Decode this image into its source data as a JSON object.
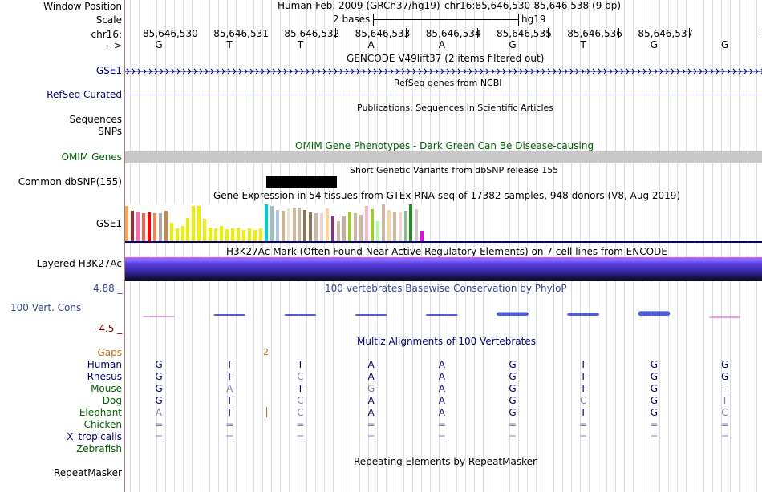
{
  "header": {
    "window_position_label": "Window Position",
    "assembly_text": "Human Feb. 2009 (GRCh37/hg19)",
    "position_text": "chr16:85,646,530-85,646,538 (9 bp)",
    "scale_label": "Scale",
    "scale_text": "2 bases",
    "scale_db": "hg19",
    "chrom_label": "chr16:",
    "strand_label": "--->",
    "coords": [
      "85,646,530",
      "85,646,531",
      "85,646,532",
      "85,646,533",
      "85,646,534",
      "85,646,535",
      "85,646,536",
      "85,646,537"
    ],
    "sequence": [
      "G",
      "T",
      "T",
      "A",
      "A",
      "G",
      "T",
      "G",
      "G"
    ]
  },
  "tracks": {
    "gencode": {
      "title": "GENCODE V49lift37 (2 items filtered out)",
      "label": "GSE1"
    },
    "refseq": {
      "title": "RefSeq genes from NCBI",
      "label": "RefSeq Curated"
    },
    "publications": {
      "title": "Publications: Sequences in Scientific Articles",
      "label_a": "Sequences",
      "label_b": "SNPs"
    },
    "omim": {
      "title": "OMIM Gene Phenotypes - Dark Green Can Be Disease-causing",
      "label": "OMIM Genes"
    },
    "dbsnp": {
      "title": "Short Genetic Variants from dbSNP release 155",
      "label": "Common dbSNP(155)"
    },
    "gtex": {
      "title": "Gene Expression in 54 tissues from GTEx RNA-seq of 17382 samples, 948 donors (V8, Aug 2019)",
      "label": "GSE1",
      "values": [
        0.95,
        0.82,
        0.8,
        0.75,
        0.78,
        0.75,
        0.75,
        0.82,
        0.5,
        0.35,
        0.42,
        0.62,
        0.95,
        0.95,
        0.6,
        0.38,
        0.35,
        0.42,
        0.32,
        0.35,
        0.38,
        0.3,
        0.35,
        0.3,
        0.35,
        1.0,
        0.95,
        0.85,
        0.82,
        0.9,
        0.92,
        0.92,
        0.85,
        0.78,
        0.75,
        0.75,
        0.9,
        0.7,
        0.55,
        0.68,
        0.8,
        0.75,
        0.72,
        0.95,
        0.88,
        0.55,
        1.0,
        0.85,
        0.8,
        0.78,
        0.82,
        1.0,
        0.88,
        0.28
      ],
      "colors": [
        "#ffa54f",
        "#a52a2a",
        "#ff69b4",
        "#ff6347",
        "#ff0000",
        "#ff7f50",
        "#aaaaaa",
        "#cd853f",
        "#eeee00",
        "#eeee00",
        "#eeee00",
        "#eeee00",
        "#eeee00",
        "#eeee00",
        "#eeee00",
        "#eeee00",
        "#eeee00",
        "#eeee00",
        "#eeee00",
        "#eeee00",
        "#eeee00",
        "#eeee00",
        "#eeee00",
        "#eeee00",
        "#eeee00",
        "#00cdcd",
        "#9ac0cd",
        "#b0c4de",
        "#d2b48c",
        "#eedfcc",
        "#cdb79e",
        "#cdb79e",
        "#8b7355",
        "#8b7355",
        "#cdb79e",
        "#eed5d2",
        "#ffd39b",
        "#7a378b",
        "#cdb79e",
        "#ccad9b",
        "#9acd32",
        "#cdb79e",
        "#cdb79e",
        "#ffb6c1",
        "#9acd32",
        "#aaffaa",
        "#cdb79e",
        "#ffd39b",
        "#cdb79e",
        "#eed5d2",
        "#8fbc8f",
        "#228b22",
        "#cdc9c9",
        "#ee00ee"
      ]
    },
    "h3k27ac": {
      "title": "H3K27Ac Mark (Often Found Near Active Regulatory Elements) on 7 cell lines from ENCODE",
      "label": "Layered H3K27Ac"
    },
    "phylop": {
      "title": "100 vertebrates Basewise Conservation by PhyloP",
      "label": "100 Vert. Cons",
      "max": "4.88 _",
      "min": "-4.5 _",
      "scores": [
        -0.35,
        0.2,
        0.1,
        0.05,
        0.05,
        0.8,
        0.6,
        1.0,
        -0.55
      ]
    },
    "multiz": {
      "title": "Multiz Alignments of 100 Vertebrates",
      "gaps_label": "Gaps",
      "gap_count": "2",
      "species": [
        {
          "name": "Human",
          "bases": [
            "G",
            "T",
            "T",
            "A",
            "A",
            "G",
            "T",
            "G",
            "G"
          ]
        },
        {
          "name": "Rhesus",
          "bases": [
            "G",
            "T",
            "C",
            "A",
            "A",
            "G",
            "T",
            "G",
            "G"
          ]
        },
        {
          "name": "Mouse",
          "bases": [
            "G",
            "A",
            "T",
            "G",
            "A",
            "G",
            "T",
            "G",
            "-"
          ]
        },
        {
          "name": "Dog",
          "bases": [
            "G",
            "T",
            "C",
            "A",
            "A",
            "G",
            "C",
            "G",
            "T"
          ]
        },
        {
          "name": "Elephant",
          "bases": [
            "A",
            "T",
            "C",
            "A",
            "A",
            "G",
            "T",
            "G",
            "C"
          ]
        },
        {
          "name": "Chicken",
          "bases": [
            "=",
            "=",
            "=",
            "=",
            "=",
            "=",
            "=",
            "=",
            "="
          ]
        },
        {
          "name": "X_tropicalis",
          "bases": [
            "=",
            "=",
            "=",
            "=",
            "=",
            "=",
            "=",
            "=",
            "="
          ]
        },
        {
          "name": "Zebrafish",
          "bases": [
            "",
            "",
            "",
            "",
            "",
            "",
            "",
            "",
            ""
          ]
        }
      ]
    },
    "repeatmasker": {
      "title": "Repeating Elements by RepeatMasker",
      "label": "RepeatMasker"
    }
  },
  "colors": {
    "navy": "#000080",
    "green": "#006400",
    "omim_bar": "#c8c8c8",
    "gap_orange": "#d2691e",
    "phylop_neg": "#8b0000"
  }
}
